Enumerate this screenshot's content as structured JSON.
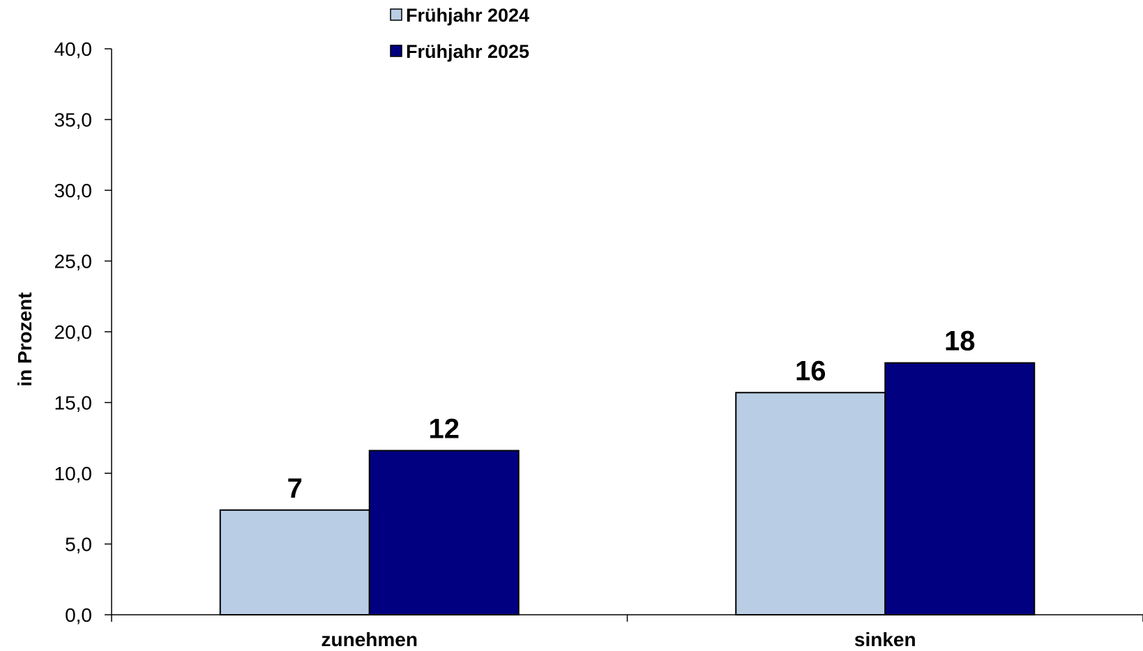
{
  "chart_data": {
    "type": "bar",
    "categories": [
      "zunehmen",
      "sinken"
    ],
    "series": [
      {
        "name": "Frühjahr 2024",
        "values": [
          7.4,
          15.7
        ],
        "labels": [
          "7",
          "16"
        ],
        "color": "#b9cde5"
      },
      {
        "name": "Frühjahr 2025",
        "values": [
          11.6,
          17.8
        ],
        "labels": [
          "12",
          "18"
        ],
        "color": "#000080"
      }
    ],
    "ylabel": "in Prozent",
    "ylim": [
      0,
      40
    ],
    "yticks": [
      "0,0",
      "5,0",
      "10,0",
      "15,0",
      "20,0",
      "25,0",
      "30,0",
      "35,0",
      "40,0"
    ],
    "grid": false,
    "legend": "top-center"
  }
}
